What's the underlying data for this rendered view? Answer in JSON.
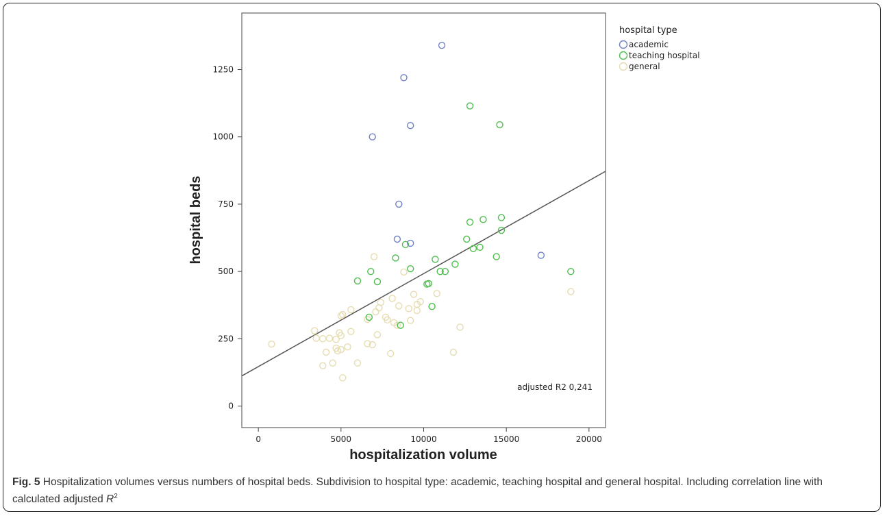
{
  "chart_data": {
    "type": "scatter",
    "xlabel": "hospitalization volume",
    "ylabel": "hospital beds",
    "xlim": [
      -1000,
      21000
    ],
    "ylim": [
      -80,
      1460
    ],
    "xticks": [
      0,
      5000,
      10000,
      15000,
      20000
    ],
    "yticks": [
      0,
      250,
      500,
      750,
      1000,
      1250
    ],
    "legend_title": "hospital type",
    "legend_position": "right, outside plot",
    "annotation": "adjusted R2 0,241",
    "regression_line": {
      "x": [
        -1000,
        21000
      ],
      "y": [
        112,
        872
      ]
    },
    "colors": {
      "academic": "#6f80c6",
      "teaching": "#4dbf4d",
      "general": "#e6dcb0",
      "line": "#555555"
    },
    "series": [
      {
        "name": "academic",
        "key": "academic",
        "points": [
          [
            11100,
            1340
          ],
          [
            8800,
            1220
          ],
          [
            9200,
            1042
          ],
          [
            6900,
            1000
          ],
          [
            8500,
            750
          ],
          [
            8400,
            620
          ],
          [
            9200,
            605
          ],
          [
            17100,
            560
          ]
        ]
      },
      {
        "name": "teaching hospital",
        "key": "teaching",
        "points": [
          [
            12800,
            1115
          ],
          [
            14600,
            1045
          ],
          [
            14700,
            700
          ],
          [
            13600,
            693
          ],
          [
            12800,
            683
          ],
          [
            14700,
            653
          ],
          [
            12600,
            620
          ],
          [
            8900,
            600
          ],
          [
            13400,
            590
          ],
          [
            13000,
            585
          ],
          [
            14400,
            555
          ],
          [
            8300,
            550
          ],
          [
            10700,
            545
          ],
          [
            11900,
            527
          ],
          [
            9200,
            510
          ],
          [
            6800,
            500
          ],
          [
            11000,
            500
          ],
          [
            11300,
            500
          ],
          [
            18900,
            500
          ],
          [
            6000,
            465
          ],
          [
            7200,
            462
          ],
          [
            10200,
            453
          ],
          [
            10300,
            455
          ],
          [
            10500,
            370
          ],
          [
            6700,
            330
          ],
          [
            8600,
            300
          ]
        ]
      },
      {
        "name": "general",
        "key": "general",
        "points": [
          [
            7000,
            555
          ],
          [
            8800,
            498
          ],
          [
            18900,
            425
          ],
          [
            10800,
            418
          ],
          [
            9400,
            415
          ],
          [
            8100,
            400
          ],
          [
            9800,
            388
          ],
          [
            7400,
            385
          ],
          [
            9600,
            378
          ],
          [
            8500,
            372
          ],
          [
            7300,
            365
          ],
          [
            9100,
            362
          ],
          [
            9600,
            355
          ],
          [
            5600,
            358
          ],
          [
            7100,
            350
          ],
          [
            5100,
            340
          ],
          [
            5000,
            335
          ],
          [
            7700,
            330
          ],
          [
            6600,
            322
          ],
          [
            9200,
            318
          ],
          [
            7800,
            320
          ],
          [
            8200,
            310
          ],
          [
            8400,
            300
          ],
          [
            12200,
            293
          ],
          [
            3400,
            280
          ],
          [
            5600,
            277
          ],
          [
            4900,
            272
          ],
          [
            7200,
            265
          ],
          [
            5000,
            262
          ],
          [
            3500,
            252
          ],
          [
            3900,
            250
          ],
          [
            4300,
            252
          ],
          [
            4700,
            248
          ],
          [
            6600,
            232
          ],
          [
            6900,
            228
          ],
          [
            800,
            230
          ],
          [
            5400,
            220
          ],
          [
            4700,
            215
          ],
          [
            5000,
            210
          ],
          [
            4100,
            200
          ],
          [
            4800,
            205
          ],
          [
            11800,
            200
          ],
          [
            8000,
            195
          ],
          [
            6000,
            160
          ],
          [
            4500,
            160
          ],
          [
            3900,
            150
          ],
          [
            5100,
            105
          ]
        ]
      }
    ]
  },
  "caption": {
    "label": "Fig. 5",
    "text_part1": " Hospitalization volumes versus numbers of hospital beds. Subdivision to hospital type: academic, teaching hospital and general hospital. Including correlation line with calculated adjusted ",
    "r2_symbol": "R",
    "r2_sup": "2"
  }
}
